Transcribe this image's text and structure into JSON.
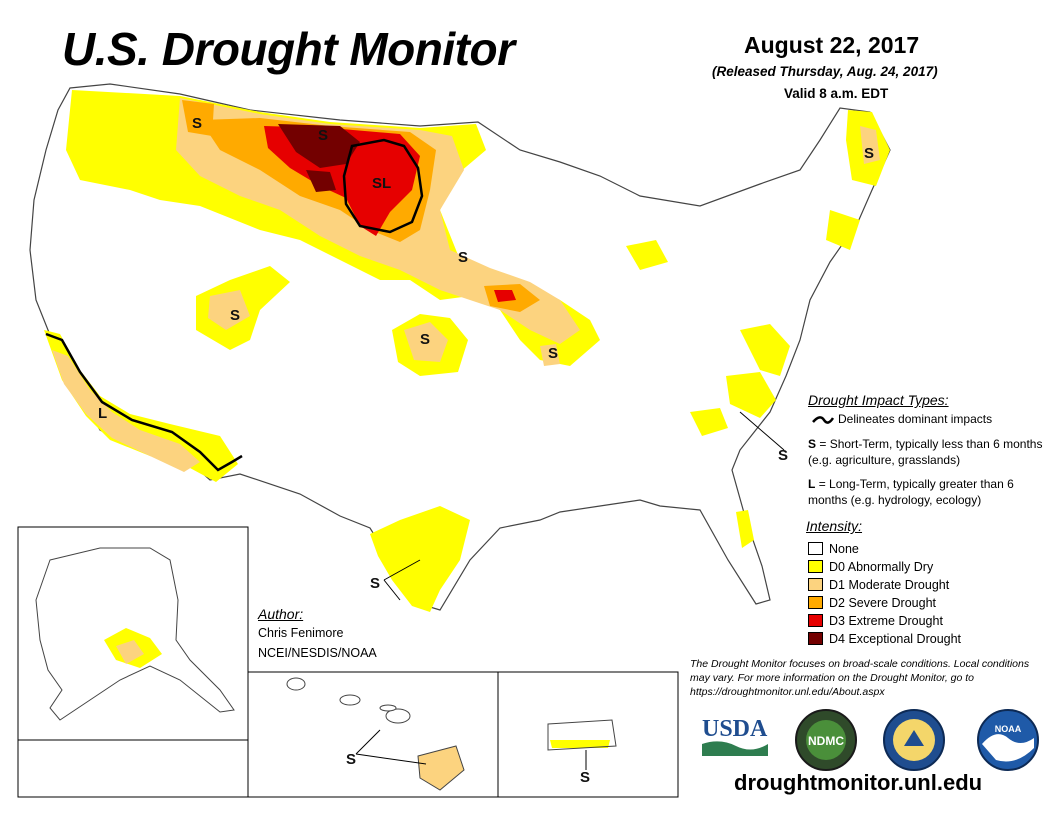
{
  "header": {
    "title": "U.S. Drought Monitor",
    "date": "August 22, 2017",
    "released": "(Released Thursday, Aug. 24, 2017)",
    "valid": "Valid 8 a.m. EDT"
  },
  "impact_legend": {
    "heading": "Drought Impact Types:",
    "line_label": "Delineates dominant impacts",
    "s_key": "S",
    "s_text": "= Short-Term, typically less than 6 months (e.g. agriculture, grasslands)",
    "l_key": "L",
    "l_text": "= Long-Term, typically greater than 6 months (e.g. hydrology, ecology)"
  },
  "intensity_legend": {
    "heading": "Intensity:",
    "items": [
      {
        "label": "None",
        "color": "#ffffff"
      },
      {
        "label": "D0 Abnormally Dry",
        "color": "#ffff00"
      },
      {
        "label": "D1 Moderate Drought",
        "color": "#fcd37f"
      },
      {
        "label": "D2 Severe Drought",
        "color": "#ffaa00"
      },
      {
        "label": "D3 Extreme Drought",
        "color": "#e60000"
      },
      {
        "label": "D4 Exceptional Drought",
        "color": "#730000"
      }
    ]
  },
  "author": {
    "heading": "Author:",
    "name": "Chris Fenimore",
    "org": "NCEI/NESDIS/NOAA"
  },
  "note": "The Drought Monitor focuses on broad-scale conditions. Local conditions may vary. For more information on the Drought Monitor, go to https://droughtmonitor.unl.edu/About.aspx",
  "footer": {
    "url": "droughtmonitor.unl.edu"
  },
  "logos": {
    "usda": "USDA",
    "ndmc": "NDMC",
    "noaa": "NOAA"
  },
  "map_labels": {
    "short_term": "S",
    "long_term": "L",
    "short_long": "SL"
  }
}
